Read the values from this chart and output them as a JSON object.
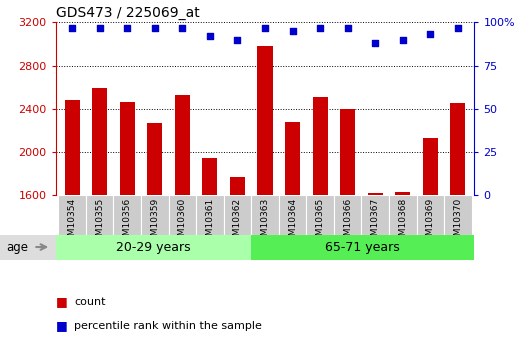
{
  "title": "GDS473 / 225069_at",
  "samples": [
    "GSM10354",
    "GSM10355",
    "GSM10356",
    "GSM10359",
    "GSM10360",
    "GSM10361",
    "GSM10362",
    "GSM10363",
    "GSM10364",
    "GSM10365",
    "GSM10366",
    "GSM10367",
    "GSM10368",
    "GSM10369",
    "GSM10370"
  ],
  "counts": [
    2480,
    2590,
    2465,
    2270,
    2530,
    1940,
    1770,
    2980,
    2280,
    2510,
    2400,
    1620,
    1630,
    2130,
    2455
  ],
  "percentile_ranks": [
    97,
    97,
    97,
    97,
    97,
    92,
    90,
    97,
    95,
    97,
    97,
    88,
    90,
    93,
    97
  ],
  "group1_label": "20-29 years",
  "group2_label": "65-71 years",
  "group1_count": 7,
  "group2_count": 8,
  "ylim_left": [
    1600,
    3200
  ],
  "ylim_right": [
    0,
    100
  ],
  "bar_color": "#cc0000",
  "dot_color": "#0000cc",
  "group1_bg": "#aaffaa",
  "group2_bg": "#55ee55",
  "left_tick_color": "#cc0000",
  "right_tick_color": "#0000cc",
  "legend_count_color": "#cc0000",
  "legend_pct_color": "#0000cc",
  "yticks_left": [
    1600,
    2000,
    2400,
    2800,
    3200
  ],
  "yticks_right": [
    0,
    25,
    50,
    75,
    100
  ]
}
